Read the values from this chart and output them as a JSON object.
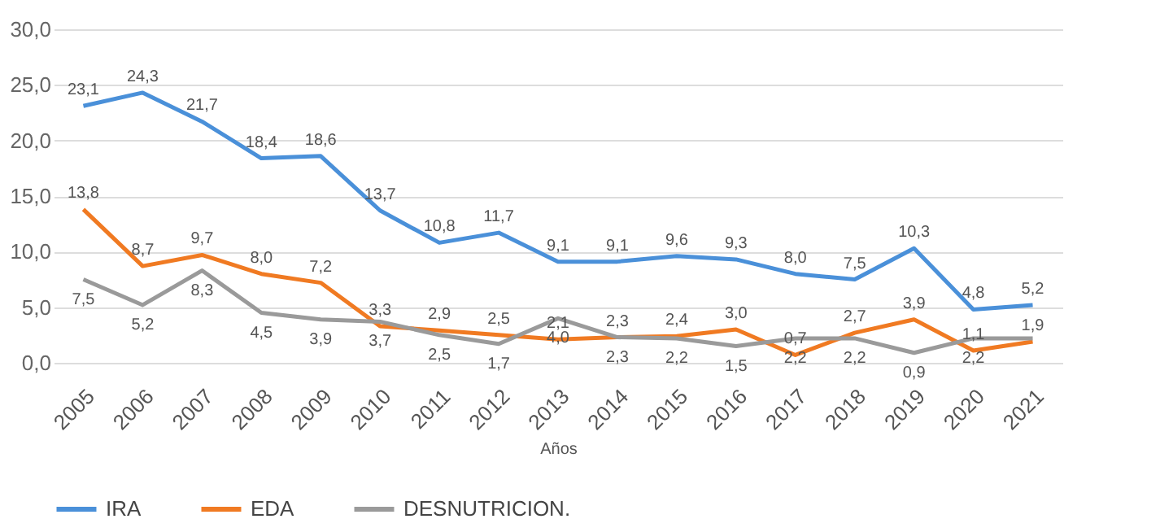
{
  "chart_data": {
    "type": "line",
    "xlabel": "Años",
    "categories": [
      "2005",
      "2006",
      "2007",
      "2008",
      "2009",
      "2010",
      "2011",
      "2012",
      "2013",
      "2014",
      "2015",
      "2016",
      "2017",
      "2018",
      "2019",
      "2020",
      "2021"
    ],
    "series": [
      {
        "name": "IRA",
        "color": "#4a90d9",
        "values": [
          23.1,
          24.3,
          21.7,
          18.4,
          18.6,
          13.7,
          10.8,
          11.7,
          9.1,
          9.1,
          9.6,
          9.3,
          8.0,
          7.5,
          10.3,
          4.8,
          5.2
        ],
        "value_labels": [
          "23,1",
          "24,3",
          "21,7",
          "18,4",
          "18,6",
          "13,7",
          "10,8",
          "11,7",
          "9,1",
          "9,1",
          "9,6",
          "9,3",
          "8,0",
          "7,5",
          "10,3",
          "4,8",
          "5,2"
        ]
      },
      {
        "name": "EDA",
        "color": "#f07a22",
        "values": [
          13.8,
          8.7,
          9.7,
          8.0,
          7.2,
          3.3,
          2.9,
          2.5,
          2.1,
          2.3,
          2.4,
          3.0,
          0.7,
          2.7,
          3.9,
          1.1,
          1.9
        ],
        "value_labels": [
          "13,8",
          "8,7",
          "9,7",
          "8,0",
          "7,2",
          "3,3",
          "2,9",
          "2,5",
          "2,1",
          "2,3",
          "2,4",
          "3,0",
          "0,7",
          "2,7",
          "3,9",
          "1,1",
          "1,9"
        ]
      },
      {
        "name": "DESNUTRICION.",
        "color": "#9a9a9a",
        "values": [
          7.5,
          5.2,
          8.3,
          4.5,
          3.9,
          3.7,
          2.5,
          1.7,
          4.0,
          2.3,
          2.2,
          1.5,
          2.2,
          2.2,
          0.9,
          2.2,
          2.2
        ],
        "value_labels": [
          "7,5",
          "5,2",
          "8,3",
          "4,5",
          "3,9",
          "3,7",
          "2,5",
          "1,7",
          "4,0",
          "2,3",
          "2,2",
          "1,5",
          "2,2",
          "2,2",
          "0,9",
          "2,2",
          null
        ]
      }
    ],
    "ylim": [
      0,
      30
    ],
    "yticks": [
      {
        "value": 0,
        "label": "0,0"
      },
      {
        "value": 5,
        "label": "5,0"
      },
      {
        "value": 10,
        "label": "10,0"
      },
      {
        "value": 15,
        "label": "15,0"
      },
      {
        "value": 20,
        "label": "20,0"
      },
      {
        "value": 25,
        "label": "25,0"
      },
      {
        "value": 30,
        "label": "30,0"
      }
    ],
    "grid": "y",
    "legend": "bottom",
    "marker": "none",
    "line_style": "solid"
  }
}
